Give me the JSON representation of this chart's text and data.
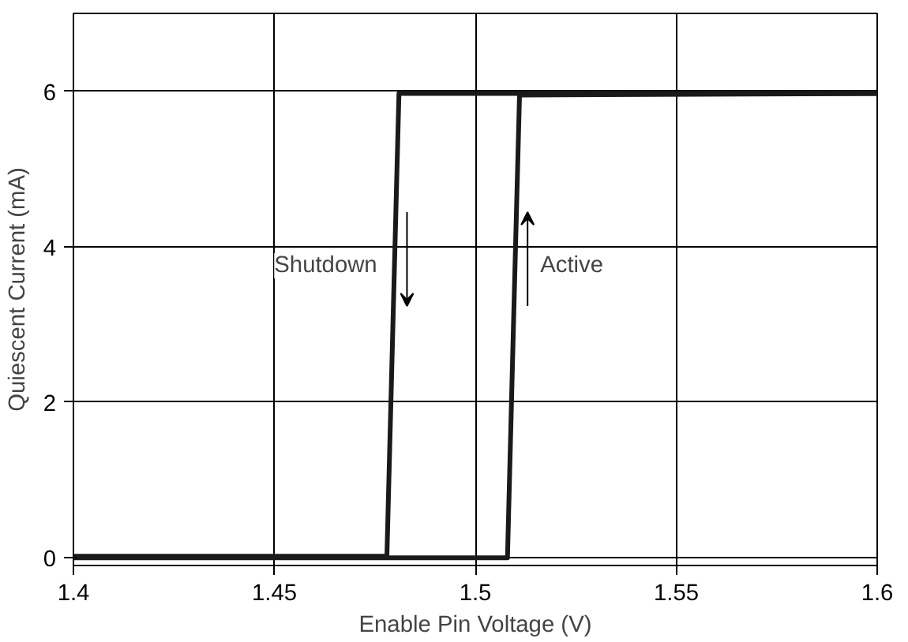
{
  "chart_data": {
    "type": "line",
    "xlabel": "Enable Pin Voltage (V)",
    "ylabel": "Quiescent Current (mA)",
    "xlim": [
      1.4,
      1.6
    ],
    "ylim": [
      -0.1,
      7
    ],
    "xticks": [
      1.4,
      1.45,
      1.5,
      1.55,
      1.6
    ],
    "yticks": [
      0,
      2,
      4,
      6
    ],
    "grid": true,
    "line_style": "solid",
    "series": [
      {
        "color": "#1a1a1a",
        "x": [
          1.4,
          1.478,
          1.4795,
          1.481,
          1.6
        ],
        "values": [
          0.02,
          0.02,
          3,
          5.97,
          5.97
        ]
      },
      {
        "color": "#1a1a1a",
        "x": [
          1.4,
          1.508,
          1.5095,
          1.511,
          1.6
        ],
        "values": [
          0.0,
          0.0,
          3,
          5.95,
          5.97
        ]
      }
    ],
    "annotations": [
      "Shutdown",
      "Active"
    ]
  }
}
